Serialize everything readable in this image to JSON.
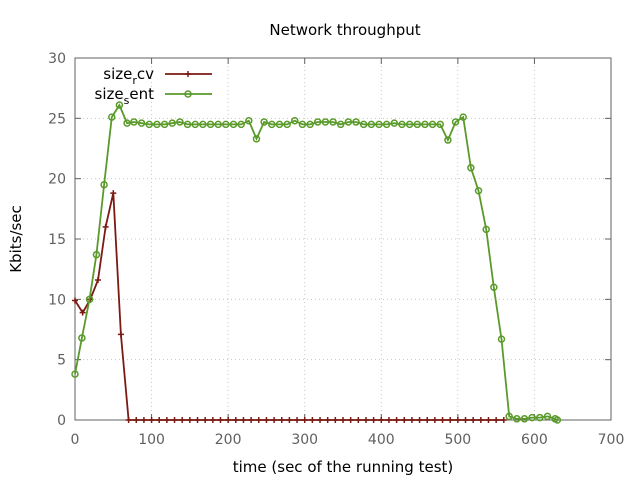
{
  "chart_data": {
    "type": "line",
    "title": "Network throughput",
    "xlabel": "time (sec of the running test)",
    "ylabel": "Kbits/sec",
    "xlim": [
      0,
      700
    ],
    "ylim": [
      0,
      30
    ],
    "xticks": [
      0,
      100,
      200,
      300,
      400,
      500,
      600,
      700
    ],
    "yticks": [
      0,
      5,
      10,
      15,
      20,
      25,
      30
    ],
    "grid": true,
    "legend_position": "top-left",
    "series": [
      {
        "name_main": "size",
        "name_sub": "r",
        "name_tail": "cv",
        "color": "#7b1a12",
        "marker": "plus",
        "x": [
          0,
          10,
          20,
          30,
          40,
          50,
          60,
          70,
          80,
          90,
          100,
          110,
          120,
          130,
          140,
          150,
          160,
          170,
          180,
          190,
          200,
          210,
          220,
          230,
          240,
          250,
          260,
          270,
          280,
          290,
          300,
          310,
          320,
          330,
          340,
          350,
          360,
          370,
          380,
          390,
          400,
          410,
          420,
          430,
          440,
          450,
          460,
          470,
          480,
          490,
          500,
          510,
          520,
          530,
          540,
          550,
          560
        ],
        "y": [
          9.9,
          8.9,
          10.0,
          11.6,
          16.0,
          18.8,
          7.1,
          0,
          0,
          0,
          0,
          0,
          0,
          0,
          0,
          0,
          0,
          0,
          0,
          0,
          0,
          0,
          0,
          0,
          0,
          0,
          0,
          0,
          0,
          0,
          0,
          0,
          0,
          0,
          0,
          0,
          0,
          0,
          0,
          0,
          0,
          0,
          0,
          0,
          0,
          0,
          0,
          0,
          0,
          0,
          0,
          0,
          0,
          0,
          0,
          0,
          0
        ]
      },
      {
        "name_main": "size",
        "name_sub": "s",
        "name_tail": "ent",
        "color": "#5a9a2a",
        "marker": "circle",
        "x": [
          0,
          9,
          19,
          28,
          38,
          48,
          58,
          68,
          77,
          87,
          97,
          107,
          117,
          127,
          137,
          147,
          157,
          167,
          177,
          187,
          197,
          207,
          217,
          227,
          237,
          247,
          257,
          267,
          277,
          287,
          297,
          307,
          317,
          327,
          337,
          347,
          357,
          367,
          377,
          387,
          397,
          407,
          417,
          427,
          437,
          447,
          457,
          467,
          477,
          487,
          497,
          507,
          517,
          527,
          537,
          547,
          557,
          567,
          577,
          587,
          597,
          607,
          617,
          627,
          630
        ],
        "y": [
          3.8,
          6.8,
          10.0,
          13.7,
          19.5,
          25.1,
          26.1,
          24.6,
          24.7,
          24.6,
          24.5,
          24.5,
          24.5,
          24.6,
          24.7,
          24.5,
          24.5,
          24.5,
          24.5,
          24.5,
          24.5,
          24.5,
          24.5,
          24.8,
          23.3,
          24.7,
          24.5,
          24.5,
          24.5,
          24.8,
          24.5,
          24.5,
          24.7,
          24.7,
          24.7,
          24.5,
          24.7,
          24.7,
          24.5,
          24.5,
          24.5,
          24.5,
          24.6,
          24.5,
          24.5,
          24.5,
          24.5,
          24.5,
          24.5,
          23.2,
          24.7,
          25.1,
          20.9,
          19.0,
          15.8,
          11.0,
          6.7,
          0.3,
          0.1,
          0.1,
          0.2,
          0.2,
          0.3,
          0.1,
          0.0
        ]
      }
    ]
  }
}
